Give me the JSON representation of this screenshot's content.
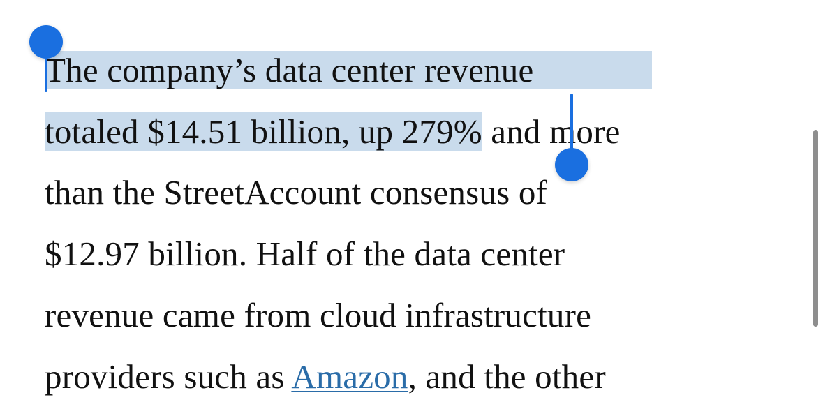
{
  "article": {
    "lines": [
      {
        "selected": "The company’s data center revenue",
        "after": ""
      },
      {
        "selected": "totaled $14.51 billion, up 279%",
        "after": " and more"
      },
      {
        "text": "than the StreetAccount consensus of"
      },
      {
        "text": "$12.97 billion. Half of the data center"
      },
      {
        "text": "revenue came from cloud infrastructure"
      },
      {
        "before": "providers such as ",
        "link": "Amazon",
        "after": ", and the other"
      }
    ]
  },
  "colors": {
    "selection_highlight": "#c9dbec",
    "selection_handle": "#1a6fe0",
    "link": "#2a6ca8",
    "text": "#111111",
    "scrollbar": "#8e8e8e"
  },
  "icons": {
    "start_handle": "selection-start-handle",
    "end_handle": "selection-end-handle"
  }
}
